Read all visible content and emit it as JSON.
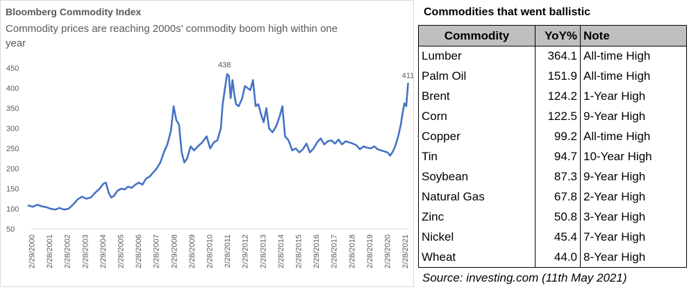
{
  "chart_data": {
    "type": "line",
    "title": "Bloomberg Commodity Index",
    "subtitle": "Commodity prices are reaching 2000s' commodity boom high within one year",
    "xlabel": "",
    "ylabel": "",
    "ylim": [
      50,
      450
    ],
    "yticks": [
      50,
      100,
      150,
      200,
      250,
      300,
      350,
      400,
      450
    ],
    "x_tick_labels": [
      "2/29/2000",
      "2/28/2001",
      "2/28/2002",
      "2/28/2003",
      "2/29/2004",
      "2/28/2005",
      "2/28/2006",
      "2/28/2007",
      "2/29/2008",
      "2/28/2009",
      "2/28/2010",
      "2/28/2011",
      "2/29/2012",
      "2/28/2013",
      "2/28/2014",
      "2/28/2015",
      "2/29/2016",
      "2/28/2017",
      "2/28/2018",
      "2/28/2019",
      "2/29/2020",
      "2/28/2021"
    ],
    "x_range": [
      2000.16,
      2021.36
    ],
    "grid": false,
    "line_color": "#4472c4",
    "annotations": [
      {
        "text": "438",
        "x": 2011.0,
        "y": 438
      },
      {
        "text": "411",
        "x": 2021.3,
        "y": 411
      }
    ],
    "series": [
      {
        "x": [
          2000.0,
          2000.25,
          2000.5,
          2000.75,
          2001.0,
          2001.25,
          2001.5,
          2001.75,
          2002.0,
          2002.25,
          2002.5,
          2002.75,
          2003.0,
          2003.25,
          2003.5,
          2003.75,
          2004.0,
          2004.2,
          2004.35,
          2004.5,
          2004.65,
          2004.8,
          2005.0,
          2005.2,
          2005.4,
          2005.6,
          2005.8,
          2006.0,
          2006.2,
          2006.4,
          2006.6,
          2006.8,
          2007.0,
          2007.2,
          2007.4,
          2007.6,
          2007.8,
          2008.0,
          2008.15,
          2008.3,
          2008.45,
          2008.6,
          2008.75,
          2008.9,
          2009.1,
          2009.3,
          2009.5,
          2009.75,
          2010.0,
          2010.2,
          2010.4,
          2010.6,
          2010.8,
          2010.9,
          2011.05,
          2011.15,
          2011.25,
          2011.35,
          2011.45,
          2011.55,
          2011.65,
          2011.8,
          2012.0,
          2012.15,
          2012.3,
          2012.45,
          2012.6,
          2012.75,
          2012.9,
          2013.05,
          2013.2,
          2013.35,
          2013.5,
          2013.7,
          2013.9,
          2014.1,
          2014.25,
          2014.4,
          2014.6,
          2014.8,
          2015.0,
          2015.2,
          2015.4,
          2015.6,
          2015.8,
          2016.0,
          2016.2,
          2016.4,
          2016.6,
          2016.8,
          2017.0,
          2017.2,
          2017.4,
          2017.6,
          2017.8,
          2018.0,
          2018.2,
          2018.4,
          2018.6,
          2018.8,
          2019.0,
          2019.2,
          2019.4,
          2019.6,
          2019.8,
          2020.0,
          2020.15,
          2020.3,
          2020.45,
          2020.6,
          2020.75,
          2020.9,
          2021.0,
          2021.1,
          2021.2,
          2021.3
        ],
        "y": [
          108,
          105,
          110,
          106,
          104,
          100,
          98,
          102,
          98,
          100,
          110,
          123,
          130,
          125,
          128,
          140,
          150,
          162,
          165,
          140,
          128,
          132,
          145,
          150,
          148,
          155,
          152,
          160,
          165,
          160,
          175,
          180,
          190,
          200,
          215,
          240,
          260,
          295,
          355,
          320,
          310,
          240,
          215,
          225,
          255,
          245,
          255,
          265,
          280,
          250,
          265,
          270,
          300,
          360,
          405,
          435,
          430,
          375,
          420,
          385,
          360,
          355,
          375,
          405,
          400,
          395,
          420,
          355,
          360,
          335,
          315,
          350,
          300,
          290,
          305,
          330,
          355,
          280,
          270,
          245,
          250,
          240,
          248,
          262,
          240,
          250,
          265,
          275,
          260,
          268,
          270,
          262,
          272,
          260,
          268,
          265,
          262,
          258,
          248,
          255,
          252,
          250,
          255,
          248,
          245,
          242,
          240,
          232,
          242,
          258,
          280,
          310,
          340,
          362,
          355,
          411
        ]
      }
    ]
  },
  "table": {
    "title": "Commodities that went ballistic",
    "headers": [
      "Commodity",
      "YoY%",
      "Note"
    ],
    "rows": [
      [
        "Lumber",
        "364.1",
        "All-time High"
      ],
      [
        "Palm Oil",
        "151.9",
        "All-time High"
      ],
      [
        "Brent",
        "124.2",
        "1-Year High"
      ],
      [
        "Corn",
        "122.5",
        "9-Year High"
      ],
      [
        "Copper",
        "99.2",
        "All-time High"
      ],
      [
        "Tin",
        "94.7",
        "10-Year High"
      ],
      [
        "Soybean",
        "87.3",
        "9-Year High"
      ],
      [
        "Natural Gas",
        "67.8",
        "2-Year High"
      ],
      [
        "Zinc",
        "50.8",
        "3-Year High"
      ],
      [
        "Nickel",
        "45.4",
        "7-Year High"
      ],
      [
        "Wheat",
        "44.0",
        "8-Year High"
      ]
    ],
    "source": "Source: investing.com (11th May 2021)"
  }
}
